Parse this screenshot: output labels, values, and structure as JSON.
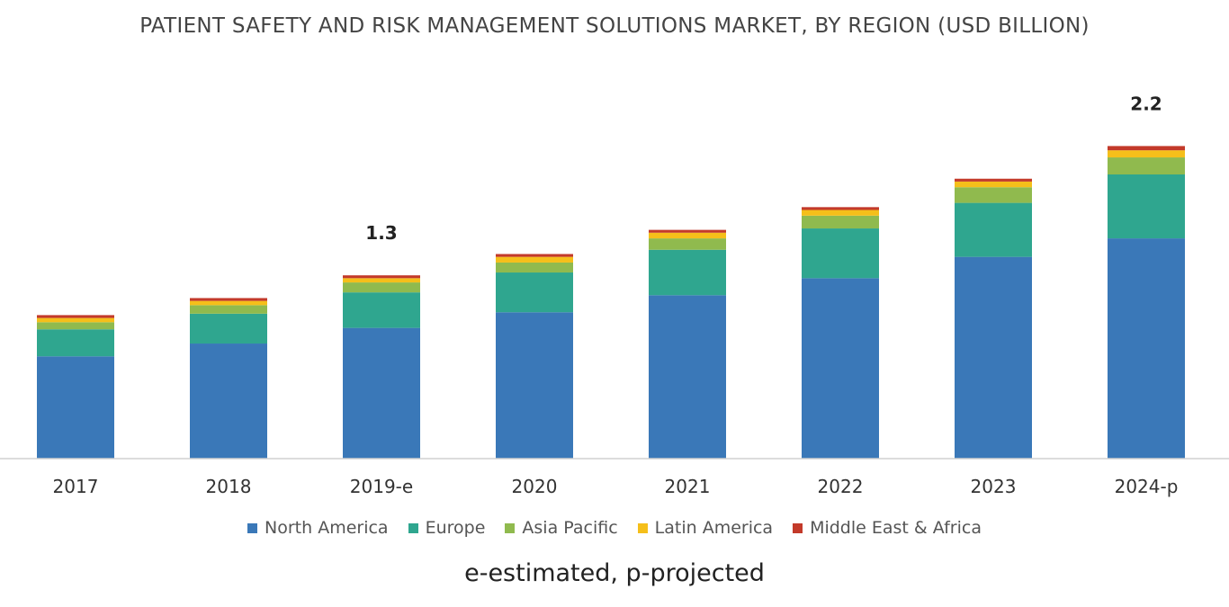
{
  "chart_data": {
    "type": "bar",
    "stacked": true,
    "title": "PATIENT SAFETY AND RISK MANAGEMENT SOLUTIONS MARKET, BY REGION (USD BILLION)",
    "categories": [
      "2017",
      "2018",
      "2019-e",
      "2020",
      "2021",
      "2022",
      "2023",
      "2024-p"
    ],
    "series": [
      {
        "name": "North America",
        "color": "#3a78b8",
        "values": [
          0.72,
          0.81,
          0.92,
          1.03,
          1.15,
          1.27,
          1.42,
          1.55
        ]
      },
      {
        "name": "Europe",
        "color": "#2fa68f",
        "values": [
          0.19,
          0.21,
          0.25,
          0.28,
          0.32,
          0.35,
          0.38,
          0.45
        ]
      },
      {
        "name": "Asia Pacific",
        "color": "#90ba4e",
        "values": [
          0.05,
          0.06,
          0.07,
          0.07,
          0.08,
          0.09,
          0.11,
          0.12
        ]
      },
      {
        "name": "Latin America",
        "color": "#f5bf1a",
        "values": [
          0.03,
          0.03,
          0.03,
          0.04,
          0.04,
          0.04,
          0.04,
          0.05
        ]
      },
      {
        "name": "Middle East & Africa",
        "color": "#c33a2a",
        "values": [
          0.02,
          0.02,
          0.02,
          0.02,
          0.02,
          0.02,
          0.02,
          0.03
        ]
      }
    ],
    "data_labels": [
      {
        "category": "2019-e",
        "text": "1.3"
      },
      {
        "category": "2024-p",
        "text": "2.2"
      }
    ],
    "ylim": [
      0,
      2.3
    ],
    "grid": false,
    "legend_position": "bottom"
  },
  "footnote": "e-estimated, p-projected"
}
